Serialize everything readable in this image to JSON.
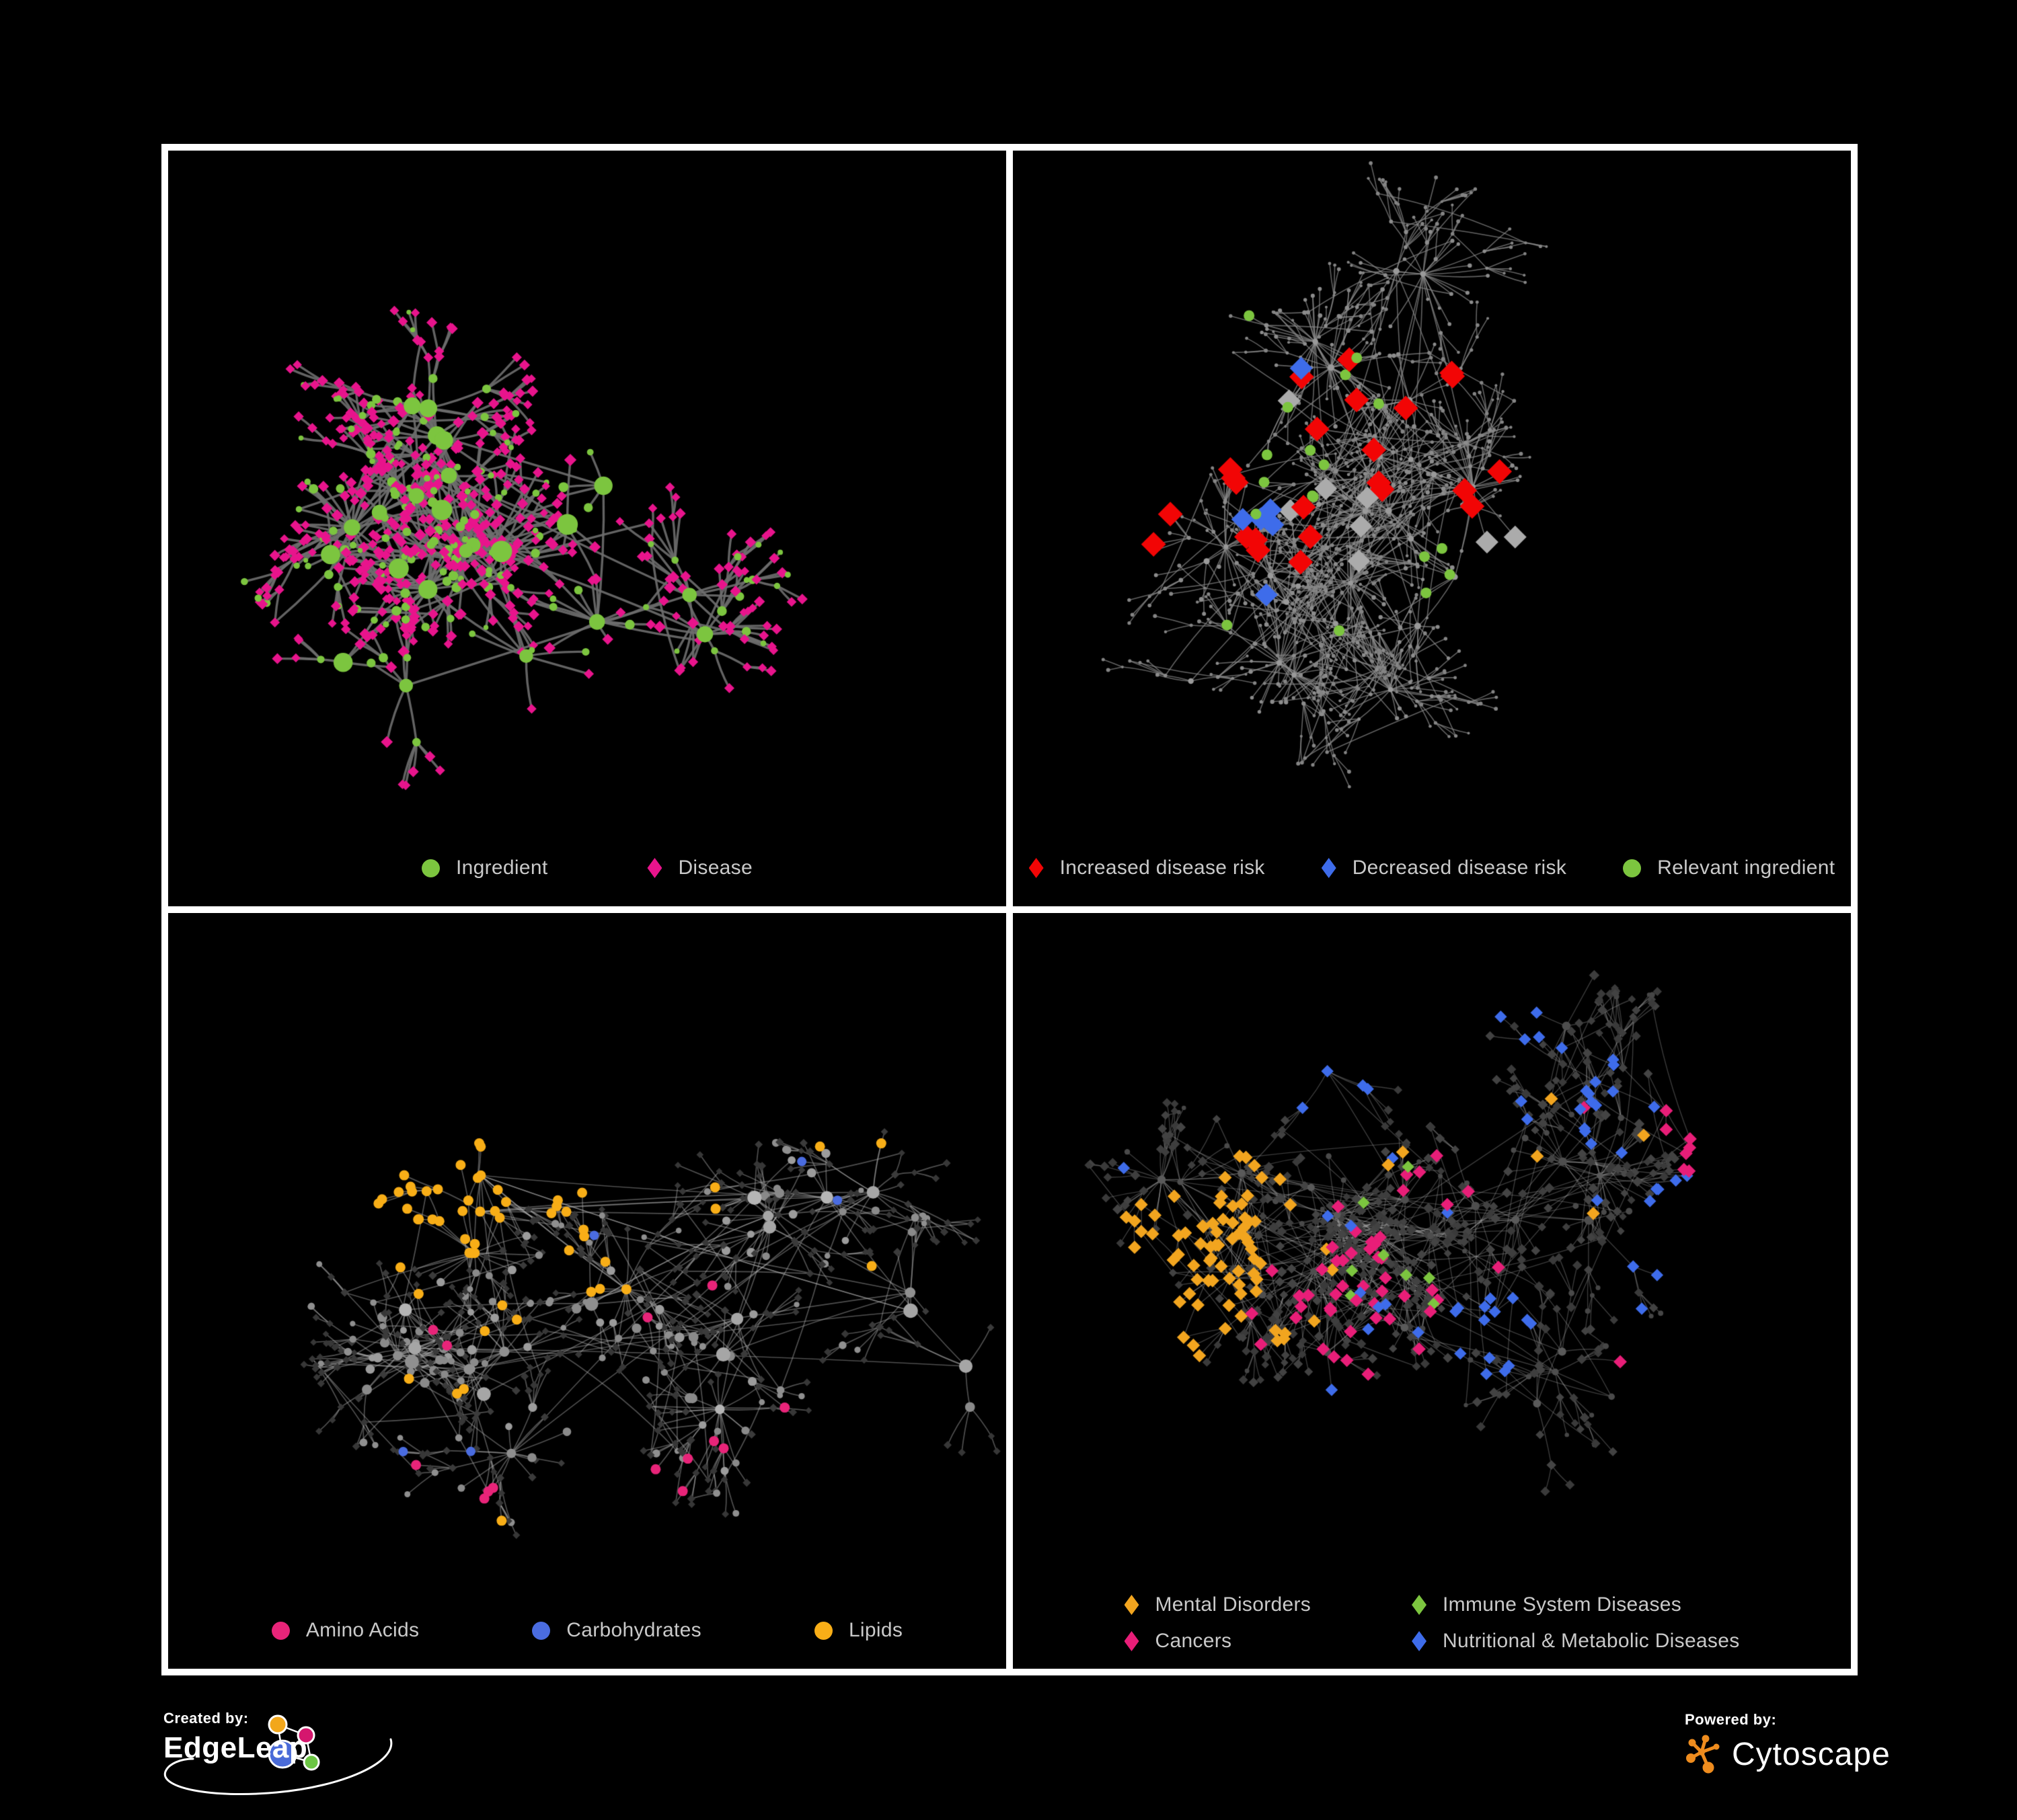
{
  "page": {
    "background": "#000000",
    "frame_color": "#FFFFFF",
    "legend_text_color": "#C9C9C9"
  },
  "footer": {
    "created_by_label": "Created by:",
    "created_by_name": "EdgeLeap",
    "powered_by_label": "Powered by:",
    "powered_by_name": "Cytoscape",
    "cytoscape_orange": "#EE8C1E",
    "edgeleap_logo_colors": {
      "hub_blue": "#4A6BD8",
      "orange": "#F2A71B",
      "pink": "#D5176E",
      "green": "#6CC644"
    }
  },
  "chart_data": [
    {
      "id": "ingredient-disease",
      "position": "top-left",
      "type": "network",
      "legend": [
        {
          "label": "Ingredient",
          "shape": "circle",
          "color": "#7CC53F"
        },
        {
          "label": "Disease",
          "shape": "diamond",
          "color": "#E8148C"
        }
      ],
      "node_groups": [
        {
          "name": "Ingredient",
          "shape": "circle",
          "color": "#7CC53F",
          "approx_count": 180
        },
        {
          "name": "Disease",
          "shape": "diamond",
          "color": "#E8148C",
          "approx_count": 430
        }
      ],
      "render": {
        "seed": 11,
        "clusters": 23,
        "maxLeaves": 20,
        "subP": 0.34,
        "subsubP": 0.18,
        "cross": 0.05,
        "edge": {
          "color": "#6E6E6E",
          "alpha": 0.9,
          "width": 3.4
        },
        "depth0": {
          "choices": [
            {
              "p": 1,
              "shape": "circle",
              "color": "#7CC53F",
              "r": [
                10,
                16
              ]
            }
          ]
        },
        "depth1": {
          "choices": [
            {
              "p": 0.38,
              "shape": "circle",
              "color": "#7CC53F",
              "r": [
                4.5,
                7.5
              ]
            },
            {
              "p": 1,
              "shape": "diamond",
              "color": "#E8148C",
              "r": [
                5,
                6.5
              ]
            }
          ]
        },
        "depth2": {
          "choices": [
            {
              "p": 0.16,
              "shape": "circle",
              "color": "#7CC53F",
              "r": [
                3.5,
                5.5
              ]
            },
            {
              "p": 1,
              "shape": "diamond",
              "color": "#E8148C",
              "r": [
                4.5,
                6
              ]
            }
          ]
        },
        "highlights": []
      }
    },
    {
      "id": "disease-risk",
      "position": "top-right",
      "type": "network",
      "legend": [
        {
          "label": "Increased disease risk",
          "shape": "diamond",
          "color": "#F20505"
        },
        {
          "label": "Decreased disease risk",
          "shape": "diamond",
          "color": "#3E6CEA"
        },
        {
          "label": "Relevant ingredient",
          "shape": "circle",
          "color": "#7CC53F"
        }
      ],
      "node_groups": [
        {
          "name": "Increased disease risk",
          "shape": "diamond",
          "color": "#F20505",
          "approx_count": 27
        },
        {
          "name": "Decreased disease risk",
          "shape": "diamond",
          "color": "#3E6CEA",
          "approx_count": 8
        },
        {
          "name": "Neutral disease association",
          "shape": "diamond",
          "color": "#ABABAB",
          "approx_count": 8
        },
        {
          "name": "Relevant ingredient",
          "shape": "circle",
          "color": "#7CC53F",
          "approx_count": 21
        },
        {
          "name": "Other node",
          "shape": "circle",
          "color": "#8C8C8C",
          "approx_count": 600
        }
      ],
      "render": {
        "seed": 7,
        "clusters": 26,
        "maxLeaves": 20,
        "subP": 0.38,
        "subsubP": 0.22,
        "cross": 0.09,
        "edge": {
          "color": "#8A8A8A",
          "alpha": 0.7,
          "width": 1.6
        },
        "depth0": {
          "choices": [
            {
              "p": 1,
              "shape": "circle",
              "color": "#9A9A9A",
              "r": [
                3.5,
                5
              ]
            }
          ]
        },
        "depth1": {
          "choices": [
            {
              "p": 1,
              "shape": "circle",
              "color": "#8C8C8C",
              "r": [
                2.4,
                3.4
              ]
            }
          ]
        },
        "depth2": {
          "choices": [
            {
              "p": 1,
              "shape": "circle",
              "color": "#848484",
              "r": [
                2,
                3
              ]
            }
          ]
        },
        "highlights": [
          {
            "shape": "diamond",
            "color": "#F20505",
            "size": 13,
            "spots": [
              [
                0.32,
                0.4,
                0.16,
                16
              ],
              [
                0.5,
                0.32,
                0.05,
                3
              ],
              [
                0.77,
                0.76,
                0.05,
                2
              ],
              [
                0.13,
                0.47,
                0.04,
                2
              ],
              [
                0.57,
                0.44,
                0.05,
                3
              ]
            ],
            "scatter": 0
          },
          {
            "shape": "diamond",
            "color": "#3E6CEA",
            "size": 12,
            "spots": [
              [
                0.81,
                0.34,
                0.04,
                2
              ],
              [
                0.27,
                0.48,
                0.06,
                4
              ],
              [
                0.36,
                0.32,
                0.04,
                1
              ],
              [
                0.3,
                0.56,
                0.04,
                1
              ]
            ],
            "scatter": 0
          },
          {
            "shape": "diamond",
            "color": "#ABABAB",
            "size": 12,
            "spots": [
              [
                0.36,
                0.44,
                0.15,
                5
              ],
              [
                0.62,
                0.6,
                0.05,
                2
              ],
              [
                0.3,
                0.34,
                0.04,
                1
              ]
            ],
            "scatter": 0
          },
          {
            "shape": "circle",
            "color": "#7CC53F",
            "size": 8,
            "spots": [
              [
                0.28,
                0.41,
                0.12,
                9
              ],
              [
                0.52,
                0.56,
                0.05,
                4
              ],
              [
                0.13,
                0.37,
                0.04,
                2
              ],
              [
                0.45,
                0.3,
                0.06,
                3
              ],
              [
                0.23,
                0.62,
                0.04,
                1
              ]
            ],
            "scatter": 2
          }
        ]
      }
    },
    {
      "id": "nutrient-classes",
      "position": "bottom-left",
      "type": "network",
      "legend": [
        {
          "label": "Amino Acids",
          "shape": "circle",
          "color": "#E82479"
        },
        {
          "label": "Carbohydrates",
          "shape": "circle",
          "color": "#4A6CE0"
        },
        {
          "label": "Lipids",
          "shape": "circle",
          "color": "#F8AE17"
        }
      ],
      "node_groups": [
        {
          "name": "Amino Acids",
          "shape": "circle",
          "color": "#E82479",
          "approx_count": 15
        },
        {
          "name": "Carbohydrates",
          "shape": "circle",
          "color": "#4A6CE0",
          "approx_count": 15
        },
        {
          "name": "Lipids",
          "shape": "circle",
          "color": "#F8AE17",
          "approx_count": 60
        },
        {
          "name": "Other ingredient",
          "shape": "circle",
          "color": "#9C9C9C",
          "approx_count": 200
        },
        {
          "name": "Disease",
          "shape": "diamond",
          "color": "#3B3B3B",
          "approx_count": 350
        }
      ],
      "render": {
        "seed": 13,
        "clusters": 24,
        "maxLeaves": 20,
        "subP": 0.33,
        "subsubP": 0.2,
        "cross": 0.12,
        "edge": {
          "color": "#B0B0B0",
          "alpha": 0.45,
          "width": 1.7
        },
        "depth0": {
          "choices": [
            {
              "p": 1,
              "shape": "circle",
              "color": [
                "#A6A6A6",
                "#8F8F8F",
                "#B5B5B5"
              ],
              "r": [
                7,
                11
              ]
            }
          ]
        },
        "depth1": {
          "choices": [
            {
              "p": 0.5,
              "shape": "circle",
              "color": [
                "#9C9C9C",
                "#8A8A8A"
              ],
              "r": [
                5,
                7.5
              ]
            },
            {
              "p": 1,
              "shape": "diamond",
              "color": "#3B3B3B",
              "r": [
                3.6,
                4.6
              ]
            }
          ]
        },
        "depth2": {
          "choices": [
            {
              "p": 0.2,
              "shape": "circle",
              "color": "#8F8F8F",
              "r": [
                4,
                6
              ]
            },
            {
              "p": 1,
              "shape": "diamond",
              "color": "#373737",
              "r": [
                3.4,
                4.4
              ]
            }
          ]
        },
        "highlights": [
          {
            "shape": "circle",
            "color": "#F8AE17",
            "size": 7.5,
            "spots": [
              [
                0.34,
                0.19,
                0.1,
                20
              ],
              [
                0.3,
                0.32,
                0.08,
                11
              ],
              [
                0.46,
                0.29,
                0.05,
                5
              ],
              [
                0.52,
                0.46,
                0.05,
                6
              ],
              [
                0.4,
                0.55,
                0.04,
                3
              ]
            ],
            "scatter": 11
          },
          {
            "shape": "circle",
            "color": "#4A6CE0",
            "size": 7,
            "spots": [
              [
                0.34,
                0.17,
                0.08,
                8
              ],
              [
                0.36,
                0.3,
                0.04,
                2
              ]
            ],
            "scatter": 5
          },
          {
            "shape": "circle",
            "color": "#E82479",
            "size": 7.5,
            "spots": [
              [
                0.06,
                0.5,
                0.04,
                2
              ],
              [
                0.62,
                0.7,
                0.06,
                3
              ],
              [
                0.4,
                0.8,
                0.04,
                2
              ]
            ],
            "scatter": 9
          }
        ]
      }
    },
    {
      "id": "disease-categories",
      "position": "bottom-right",
      "type": "network",
      "legend": [
        {
          "label": "Mental Disorders",
          "shape": "diamond",
          "color": "#F2A51F"
        },
        {
          "label": "Immune System Diseases",
          "shape": "diamond",
          "color": "#7CC53F"
        },
        {
          "label": "Cancers",
          "shape": "diamond",
          "color": "#E81E78"
        },
        {
          "label": "Nutritional & Metabolic Diseases",
          "shape": "diamond",
          "color": "#3E6CEA"
        }
      ],
      "node_groups": [
        {
          "name": "Mental Disorders",
          "shape": "diamond",
          "color": "#F2A51F",
          "approx_count": 80
        },
        {
          "name": "Immune System Diseases",
          "shape": "diamond",
          "color": "#7CC53F",
          "approx_count": 8
        },
        {
          "name": "Cancers",
          "shape": "diamond",
          "color": "#E81E78",
          "approx_count": 55
        },
        {
          "name": "Nutritional & Metabolic Diseases",
          "shape": "diamond",
          "color": "#3E6CEA",
          "approx_count": 60
        },
        {
          "name": "Other disease",
          "shape": "diamond",
          "color": "#3E3E3E",
          "approx_count": 450
        }
      ],
      "render": {
        "seed": 3,
        "clusters": 28,
        "maxLeaves": 22,
        "subP": 0.34,
        "subsubP": 0.2,
        "cross": 0.13,
        "edge": {
          "color": "#B8B8B8",
          "alpha": 0.32,
          "width": 1.4
        },
        "depth0": {
          "choices": [
            {
              "p": 1,
              "shape": "circle",
              "color": [
                "#4E4E4E",
                "#5A5A5A"
              ],
              "r": [
                4.5,
                6.5
              ]
            }
          ]
        },
        "depth1": {
          "choices": [
            {
              "p": 0.85,
              "shape": "diamond",
              "color": [
                "#3E3E3E",
                "#444444"
              ],
              "r": [
                4.2,
                5.6
              ]
            },
            {
              "p": 1,
              "shape": "circle",
              "color": "#4A4A4A",
              "r": [
                3.5,
                5
              ]
            }
          ]
        },
        "depth2": {
          "choices": [
            {
              "p": 0.9,
              "shape": "diamond",
              "color": [
                "#3A3A3A",
                "#424242"
              ],
              "r": [
                4,
                5.2
              ]
            },
            {
              "p": 1,
              "shape": "circle",
              "color": "#464646",
              "r": [
                3,
                4.5
              ]
            }
          ]
        },
        "highlights": [
          {
            "shape": "diamond",
            "color": "#F2A51F",
            "size": 7,
            "spots": [
              [
                0.2,
                0.47,
                0.11,
                55
              ],
              [
                0.28,
                0.37,
                0.06,
                12
              ],
              [
                0.33,
                0.56,
                0.04,
                4
              ]
            ],
            "scatter": 10
          },
          {
            "shape": "diamond",
            "color": "#E81E78",
            "size": 7,
            "spots": [
              [
                0.42,
                0.52,
                0.1,
                38
              ],
              [
                0.88,
                0.26,
                0.05,
                7
              ],
              [
                0.5,
                0.36,
                0.05,
                6
              ]
            ],
            "scatter": 7
          },
          {
            "shape": "diamond",
            "color": "#3E6CEA",
            "size": 6.5,
            "spots": [
              [
                0.57,
                0.56,
                0.06,
                14
              ],
              [
                0.74,
                0.24,
                0.09,
                14
              ],
              [
                0.83,
                0.44,
                0.05,
                7
              ],
              [
                0.35,
                0.12,
                0.05,
                4
              ],
              [
                0.6,
                0.13,
                0.05,
                4
              ]
            ],
            "scatter": 16
          },
          {
            "shape": "diamond",
            "color": "#7CC53F",
            "size": 6.5,
            "spots": [
              [
                0.45,
                0.4,
                0.14,
                5
              ]
            ],
            "scatter": 3
          }
        ]
      }
    }
  ]
}
